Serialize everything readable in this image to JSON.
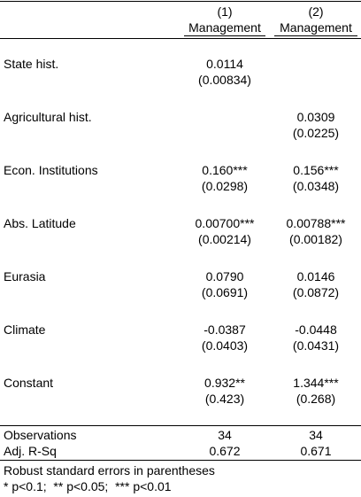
{
  "columns": [
    {
      "number": "(1)",
      "dependent": "Management"
    },
    {
      "number": "(2)",
      "dependent": "Management"
    }
  ],
  "rows": [
    {
      "label": "State hist.",
      "c1": "0.0114",
      "c1_se": "(0.00834)",
      "c2": "",
      "c2_se": ""
    },
    {
      "label": "Agricultural hist.",
      "c1": "",
      "c1_se": "",
      "c2": "0.0309",
      "c2_se": "(0.0225)"
    },
    {
      "label": "Econ. Institutions",
      "c1": "0.160***",
      "c1_se": "(0.0298)",
      "c2": "0.156***",
      "c2_se": "(0.0348)"
    },
    {
      "label": "Abs. Latitude",
      "c1": "0.00700***",
      "c1_se": "(0.00214)",
      "c2": "0.00788***",
      "c2_se": "(0.00182)"
    },
    {
      "label": "Eurasia",
      "c1": "0.0790",
      "c1_se": "(0.0691)",
      "c2": "0.0146",
      "c2_se": "(0.0872)"
    },
    {
      "label": "Climate",
      "c1": "-0.0387",
      "c1_se": "(0.0403)",
      "c2": "-0.0448",
      "c2_se": "(0.0431)"
    },
    {
      "label": "Constant",
      "c1": "0.932**",
      "c1_se": "(0.423)",
      "c2": "1.344***",
      "c2_se": "(0.268)"
    }
  ],
  "stats": [
    {
      "label": "Observations",
      "c1": "34",
      "c2": "34"
    },
    {
      "label": "Adj. R-Sq",
      "c1": "0.672",
      "c2": "0.671"
    }
  ],
  "notes": {
    "line1": "Robust standard errors in parentheses",
    "line2": "* p<0.1;  ** p<0.05;  *** p<0.01"
  }
}
